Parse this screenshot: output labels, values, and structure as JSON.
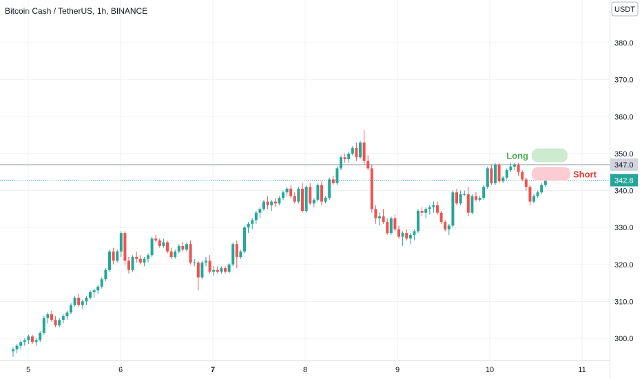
{
  "title": "Bitcoin Cash / TetherUS, 1h, BINANCE",
  "currency_label": "USDT",
  "colors": {
    "up": "#26a69a",
    "down": "#ef5350",
    "grid": "#eef0f3",
    "axis_line": "#e0e3eb",
    "price_line": "#26a69a",
    "level_line": "#b2b5be",
    "long_box": "#cdebcf",
    "long_text": "#4caf50",
    "short_box": "#fbcdd2",
    "short_text": "#e53935"
  },
  "chart_data": {
    "type": "candlestick",
    "symbol": "Bitcoin Cash / TetherUS",
    "interval": "1h",
    "exchange": "BINANCE",
    "ylim": [
      295,
      390
    ],
    "yticks": [
      300,
      310,
      320,
      330,
      340,
      350,
      360,
      370,
      380
    ],
    "ytick_labels": [
      "300.0",
      "310.0",
      "320.0",
      "330.0",
      "340.0",
      "350.0",
      "360.0",
      "370.0",
      "380.0"
    ],
    "xticks": [
      {
        "label": "5",
        "day": 5,
        "bold": false
      },
      {
        "label": "6",
        "day": 6,
        "bold": false
      },
      {
        "label": "7",
        "day": 7,
        "bold": true
      },
      {
        "label": "8",
        "day": 8,
        "bold": false
      },
      {
        "label": "9",
        "day": 9,
        "bold": false
      },
      {
        "label": "10",
        "day": 10,
        "bold": false
      },
      {
        "label": "11",
        "day": 11,
        "bold": false
      }
    ],
    "levels": [
      {
        "value": 347.0,
        "label": "347.0",
        "style": "solid"
      },
      {
        "value": 342.8,
        "label": "342.8",
        "style": "dotted"
      }
    ],
    "annotations": [
      {
        "text": "Long",
        "price": 349.5
      },
      {
        "text": "Short",
        "price": 344.5
      }
    ],
    "candles": [
      [
        296.5,
        297.5,
        295.0,
        297.0
      ],
      [
        297.0,
        298.5,
        296.0,
        298.0
      ],
      [
        298.0,
        299.5,
        297.0,
        299.0
      ],
      [
        299.0,
        300.0,
        298.0,
        299.5
      ],
      [
        299.5,
        301.0,
        298.5,
        300.5
      ],
      [
        300.5,
        301.0,
        298.5,
        299.0
      ],
      [
        299.0,
        300.0,
        298.0,
        299.5
      ],
      [
        299.5,
        302.0,
        299.0,
        301.5
      ],
      [
        301.5,
        306.0,
        301.0,
        305.5
      ],
      [
        305.5,
        307.0,
        304.0,
        306.5
      ],
      [
        306.5,
        307.5,
        304.5,
        305.0
      ],
      [
        305.0,
        306.0,
        303.0,
        303.5
      ],
      [
        303.5,
        305.5,
        303.0,
        305.0
      ],
      [
        305.0,
        306.5,
        304.0,
        306.0
      ],
      [
        306.0,
        307.5,
        305.0,
        307.0
      ],
      [
        307.0,
        309.5,
        306.5,
        309.0
      ],
      [
        309.0,
        311.5,
        308.5,
        311.0
      ],
      [
        311.0,
        312.0,
        308.5,
        309.0
      ],
      [
        309.0,
        310.5,
        308.0,
        310.0
      ],
      [
        310.0,
        311.5,
        309.0,
        311.0
      ],
      [
        311.0,
        313.0,
        310.5,
        312.5
      ],
      [
        312.5,
        313.5,
        311.0,
        313.0
      ],
      [
        313.0,
        314.5,
        312.0,
        314.0
      ],
      [
        314.0,
        316.5,
        313.5,
        316.0
      ],
      [
        316.0,
        319.0,
        315.5,
        318.5
      ],
      [
        318.5,
        324.0,
        318.0,
        323.5
      ],
      [
        323.5,
        324.5,
        320.0,
        321.0
      ],
      [
        321.0,
        324.0,
        320.5,
        323.5
      ],
      [
        323.5,
        329.0,
        322.0,
        328.5
      ],
      [
        328.5,
        329.0,
        320.0,
        321.0
      ],
      [
        321.0,
        322.0,
        317.5,
        318.5
      ],
      [
        318.5,
        322.5,
        318.0,
        322.0
      ],
      [
        322.0,
        323.5,
        320.5,
        321.5
      ],
      [
        321.5,
        322.5,
        320.0,
        320.5
      ],
      [
        320.5,
        322.0,
        319.5,
        321.5
      ],
      [
        321.5,
        323.0,
        320.5,
        322.5
      ],
      [
        322.5,
        327.5,
        322.0,
        327.0
      ],
      [
        327.0,
        328.0,
        326.0,
        326.5
      ],
      [
        326.5,
        327.0,
        324.5,
        325.0
      ],
      [
        325.0,
        327.0,
        324.5,
        326.0
      ],
      [
        326.0,
        326.5,
        323.0,
        323.5
      ],
      [
        323.5,
        324.5,
        321.5,
        322.0
      ],
      [
        322.0,
        324.0,
        321.5,
        323.5
      ],
      [
        323.5,
        325.5,
        323.0,
        325.0
      ],
      [
        325.0,
        326.0,
        323.5,
        324.0
      ],
      [
        324.0,
        326.0,
        323.5,
        325.5
      ],
      [
        325.5,
        326.5,
        320.0,
        320.5
      ],
      [
        320.5,
        321.5,
        319.5,
        320.5
      ],
      [
        320.5,
        321.0,
        313.0,
        316.5
      ],
      [
        316.5,
        321.0,
        316.0,
        320.5
      ],
      [
        320.5,
        322.0,
        319.5,
        321.0
      ],
      [
        321.0,
        322.5,
        317.5,
        318.0
      ],
      [
        318.0,
        319.5,
        317.0,
        318.5
      ],
      [
        318.5,
        319.5,
        317.5,
        318.0
      ],
      [
        318.0,
        319.5,
        317.5,
        319.0
      ],
      [
        319.0,
        319.5,
        317.5,
        318.0
      ],
      [
        318.0,
        320.5,
        317.5,
        320.0
      ],
      [
        320.0,
        326.0,
        319.5,
        325.5
      ],
      [
        325.5,
        326.5,
        319.0,
        322.0
      ],
      [
        322.0,
        324.0,
        321.5,
        323.5
      ],
      [
        323.5,
        330.5,
        323.0,
        330.0
      ],
      [
        330.0,
        331.5,
        328.5,
        331.0
      ],
      [
        331.0,
        332.5,
        329.5,
        332.0
      ],
      [
        332.0,
        334.5,
        331.0,
        334.0
      ],
      [
        334.0,
        335.5,
        332.5,
        335.0
      ],
      [
        335.0,
        337.5,
        334.5,
        337.0
      ],
      [
        337.0,
        338.5,
        335.0,
        336.0
      ],
      [
        336.0,
        337.5,
        334.5,
        337.0
      ],
      [
        337.0,
        338.0,
        335.5,
        336.5
      ],
      [
        336.5,
        338.5,
        336.0,
        338.0
      ],
      [
        338.0,
        340.0,
        337.5,
        339.5
      ],
      [
        339.5,
        341.0,
        338.5,
        340.5
      ],
      [
        340.5,
        341.5,
        338.0,
        338.5
      ],
      [
        338.5,
        339.5,
        336.5,
        337.0
      ],
      [
        337.0,
        341.0,
        336.5,
        340.5
      ],
      [
        340.5,
        342.0,
        334.0,
        334.5
      ],
      [
        334.5,
        341.5,
        334.0,
        341.0
      ],
      [
        341.0,
        342.0,
        336.0,
        336.5
      ],
      [
        336.5,
        338.0,
        335.5,
        337.5
      ],
      [
        337.5,
        342.0,
        337.0,
        341.5
      ],
      [
        341.5,
        342.5,
        336.0,
        337.0
      ],
      [
        337.0,
        338.5,
        336.5,
        338.0
      ],
      [
        338.0,
        343.5,
        337.5,
        343.0
      ],
      [
        343.0,
        344.0,
        341.5,
        342.0
      ],
      [
        342.0,
        346.5,
        341.5,
        346.0
      ],
      [
        346.0,
        349.5,
        345.5,
        349.0
      ],
      [
        349.0,
        350.0,
        347.5,
        348.5
      ],
      [
        348.5,
        350.5,
        347.5,
        350.0
      ],
      [
        350.0,
        352.0,
        349.5,
        351.5
      ],
      [
        351.5,
        353.0,
        348.0,
        349.0
      ],
      [
        349.0,
        353.5,
        348.5,
        353.0
      ],
      [
        353.0,
        356.5,
        347.0,
        348.0
      ],
      [
        348.0,
        349.5,
        345.5,
        346.0
      ],
      [
        346.0,
        347.0,
        334.0,
        335.0
      ],
      [
        335.0,
        336.0,
        331.0,
        332.5
      ],
      [
        332.5,
        334.0,
        330.5,
        333.0
      ],
      [
        333.0,
        335.0,
        331.0,
        331.5
      ],
      [
        331.5,
        332.5,
        328.0,
        328.5
      ],
      [
        328.5,
        333.0,
        328.0,
        332.5
      ],
      [
        332.5,
        333.5,
        329.0,
        329.5
      ],
      [
        329.5,
        330.5,
        327.0,
        327.5
      ],
      [
        327.5,
        329.0,
        325.0,
        328.5
      ],
      [
        328.5,
        329.5,
        326.5,
        327.0
      ],
      [
        327.0,
        328.5,
        325.5,
        328.0
      ],
      [
        328.0,
        329.5,
        326.5,
        329.0
      ],
      [
        329.0,
        335.0,
        328.5,
        334.5
      ],
      [
        334.5,
        335.5,
        333.0,
        334.0
      ],
      [
        334.0,
        335.5,
        332.5,
        335.0
      ],
      [
        335.0,
        336.0,
        333.5,
        335.5
      ],
      [
        335.5,
        337.0,
        334.0,
        336.0
      ],
      [
        336.0,
        337.0,
        333.5,
        334.0
      ],
      [
        334.0,
        334.5,
        331.0,
        331.5
      ],
      [
        331.5,
        332.0,
        329.0,
        329.5
      ],
      [
        329.5,
        331.0,
        328.0,
        330.5
      ],
      [
        330.5,
        340.0,
        330.0,
        339.5
      ],
      [
        339.5,
        340.5,
        336.0,
        336.5
      ],
      [
        336.5,
        340.0,
        336.0,
        339.0
      ],
      [
        339.0,
        340.0,
        338.5,
        339.0
      ],
      [
        339.0,
        341.0,
        333.0,
        334.0
      ],
      [
        334.0,
        339.0,
        333.5,
        338.5
      ],
      [
        338.5,
        339.5,
        337.0,
        337.5
      ],
      [
        337.5,
        338.5,
        337.0,
        338.0
      ],
      [
        338.0,
        341.5,
        337.5,
        341.0
      ],
      [
        341.0,
        346.5,
        340.5,
        346.0
      ],
      [
        346.0,
        347.0,
        341.5,
        342.0
      ],
      [
        342.0,
        347.5,
        341.5,
        347.0
      ],
      [
        347.0,
        347.5,
        342.0,
        342.5
      ],
      [
        342.5,
        344.0,
        342.0,
        343.5
      ],
      [
        343.5,
        346.0,
        343.0,
        345.5
      ],
      [
        345.5,
        347.5,
        345.0,
        346.5
      ],
      [
        346.5,
        347.5,
        345.5,
        347.0
      ],
      [
        347.0,
        347.5,
        344.0,
        345.0
      ],
      [
        345.0,
        345.5,
        342.5,
        343.0
      ],
      [
        343.0,
        343.5,
        340.0,
        341.0
      ],
      [
        341.0,
        341.5,
        336.0,
        337.0
      ],
      [
        337.0,
        339.0,
        336.5,
        338.5
      ],
      [
        338.5,
        340.0,
        338.0,
        339.5
      ],
      [
        339.5,
        342.0,
        339.0,
        341.5
      ],
      [
        341.5,
        343.0,
        341.0,
        342.8
      ]
    ]
  }
}
